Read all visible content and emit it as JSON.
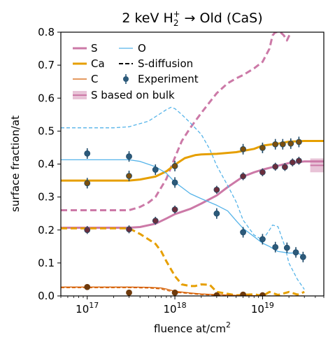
{
  "chart_data": {
    "type": "line",
    "title": {
      "prefix": "2 keV H",
      "sub": "2",
      "sup": "+",
      "suffix": " → Old (CaS)"
    },
    "xlabel": {
      "prefix": "fluence at/cm",
      "sup": "2"
    },
    "ylabel": "surface fraction/at",
    "x_scale": "log",
    "xlim": [
      5e+16,
      5e+19
    ],
    "ylim": [
      0.0,
      0.8
    ],
    "x_ticks": [
      {
        "value": 1e+17,
        "base": "10",
        "exp": "17"
      },
      {
        "value": 1e+18,
        "base": "10",
        "exp": "18"
      },
      {
        "value": 1e+19,
        "base": "10",
        "exp": "19"
      }
    ],
    "y_ticks": [
      0.0,
      0.1,
      0.2,
      0.3,
      0.4,
      0.5,
      0.6,
      0.7,
      0.8
    ],
    "y_tick_labels": [
      "0.0",
      "0.1",
      "0.2",
      "0.3",
      "0.4",
      "0.5",
      "0.6",
      "0.7",
      "0.8"
    ],
    "grid": false,
    "legend": {
      "placement": "top-left",
      "entries": [
        {
          "label": "S",
          "kind": "line",
          "color": "#cc79a7",
          "width": 3
        },
        {
          "label": "O",
          "kind": "line",
          "color": "#56b4e9",
          "width": 1.3
        },
        {
          "label": "Ca",
          "kind": "line",
          "color": "#e69f00",
          "width": 3
        },
        {
          "label": "S-diffusion",
          "kind": "dashed",
          "color": "#000000",
          "width": 2
        },
        {
          "label": "C",
          "kind": "line",
          "color": "#d55e00",
          "width": 1.3
        },
        {
          "label": "Experiment",
          "kind": "marker",
          "color": "#2c5a7a",
          "width": 1.5
        },
        {
          "label": "S based on bulk",
          "kind": "band",
          "color": "#cc79a7",
          "width": 2
        }
      ]
    },
    "series": [
      {
        "name": "S",
        "color": "#cc79a7",
        "width": 3,
        "dash": "none",
        "x": [
          5e+16,
          3e+17,
          4e+17,
          6e+17,
          8e+17,
          1e+18,
          1.5e+18,
          2e+18,
          3e+18,
          4e+18,
          6e+18,
          8e+18,
          1e+19,
          1.5e+19,
          2e+19,
          2.5e+19,
          3e+19,
          5e+19
        ],
        "y": [
          0.207,
          0.207,
          0.209,
          0.219,
          0.235,
          0.248,
          0.264,
          0.28,
          0.305,
          0.33,
          0.362,
          0.375,
          0.383,
          0.395,
          0.403,
          0.405,
          0.408,
          0.408
        ]
      },
      {
        "name": "S-diffusion (S)",
        "color": "#cc79a7",
        "width": 3,
        "dash": "9,5",
        "x": [
          5e+16,
          3e+17,
          4e+17,
          5e+17,
          6e+17,
          8e+17,
          1e+18,
          1.2e+18,
          1.5e+18,
          2e+18,
          2.5e+18,
          3e+18,
          4e+18,
          5e+18,
          6e+18,
          8e+18,
          1e+19,
          1.2e+19,
          1.3e+19,
          1.4e+19,
          1.6e+19,
          1.75e+19,
          1.9e+19,
          2.1e+19
        ],
        "y": [
          0.26,
          0.26,
          0.27,
          0.283,
          0.3,
          0.355,
          0.42,
          0.47,
          0.51,
          0.555,
          0.588,
          0.615,
          0.645,
          0.66,
          0.67,
          0.69,
          0.71,
          0.75,
          0.79,
          0.8,
          0.8,
          0.79,
          0.775,
          0.8
        ]
      },
      {
        "name": "Ca",
        "color": "#e69f00",
        "width": 3,
        "dash": "none",
        "x": [
          5e+16,
          3e+17,
          4e+17,
          6e+17,
          8e+17,
          1e+18,
          1.3e+18,
          1.7e+18,
          2e+18,
          3e+18,
          5e+18,
          8e+18,
          1e+19,
          1.5e+19,
          2e+19,
          3e+19,
          5e+19
        ],
        "y": [
          0.35,
          0.35,
          0.353,
          0.362,
          0.378,
          0.398,
          0.418,
          0.427,
          0.429,
          0.431,
          0.436,
          0.446,
          0.456,
          0.462,
          0.468,
          0.47,
          0.47
        ]
      },
      {
        "name": "S-diffusion (Ca)",
        "color": "#e69f00",
        "width": 3,
        "dash": "9,5",
        "x": [
          5e+16,
          3e+17,
          4e+17,
          6e+17,
          7e+17,
          8e+17,
          1e+18,
          1.2e+18,
          1.5e+18,
          1.7e+18,
          2e+18,
          2.5e+18,
          3e+18,
          5e+18,
          8e+18,
          1e+19,
          1.2e+19,
          1.5e+19,
          2e+19,
          2.5e+19,
          3e+19
        ],
        "y": [
          0.205,
          0.205,
          0.188,
          0.158,
          0.135,
          0.105,
          0.06,
          0.035,
          0.03,
          0.03,
          0.035,
          0.034,
          0.012,
          0.002,
          0.005,
          0.0,
          0.012,
          0.003,
          0.012,
          0.004,
          0.012
        ]
      },
      {
        "name": "O",
        "color": "#56b4e9",
        "width": 1.3,
        "dash": "none",
        "x": [
          5e+16,
          3e+17,
          4e+17,
          6e+17,
          8e+17,
          1e+18,
          1.5e+18,
          2e+18,
          3e+18,
          4e+18,
          5e+18,
          6e+18,
          8e+18,
          1e+19,
          1.2e+19,
          1.5e+19,
          2e+19,
          2.5e+19,
          3e+19
        ],
        "y": [
          0.413,
          0.413,
          0.408,
          0.392,
          0.372,
          0.345,
          0.31,
          0.295,
          0.275,
          0.258,
          0.228,
          0.205,
          0.18,
          0.16,
          0.15,
          0.135,
          0.13,
          0.13,
          0.12
        ]
      },
      {
        "name": "S-diffusion (O)",
        "color": "#56b4e9",
        "width": 1.3,
        "dash": "5,3",
        "x": [
          5e+16,
          2e+17,
          3e+17,
          5e+17,
          7e+17,
          8e+17,
          9e+17,
          1e+18,
          1.2e+18,
          1.5e+18,
          2e+18,
          2.5e+18,
          3e+18,
          4e+18,
          5e+18,
          6e+18,
          8e+18,
          1e+19,
          1.2e+19,
          1.3e+19,
          1.5e+19,
          1.8e+19,
          2e+19,
          2.5e+19,
          3e+19
        ],
        "y": [
          0.51,
          0.51,
          0.513,
          0.53,
          0.555,
          0.565,
          0.572,
          0.568,
          0.55,
          0.525,
          0.49,
          0.445,
          0.395,
          0.335,
          0.285,
          0.23,
          0.185,
          0.17,
          0.2,
          0.215,
          0.21,
          0.15,
          0.1,
          0.05,
          0.02
        ]
      },
      {
        "name": "C",
        "color": "#d55e00",
        "width": 1.3,
        "dash": "none",
        "x": [
          5e+16,
          3e+17,
          5e+17,
          7e+17,
          8e+17,
          1e+18,
          1.5e+18,
          2e+18,
          3e+18,
          5e+18,
          8e+18,
          1e+19,
          2e+19,
          3e+19
        ],
        "y": [
          0.027,
          0.027,
          0.026,
          0.024,
          0.021,
          0.014,
          0.009,
          0.006,
          0.004,
          0.002,
          0.001,
          0.0,
          0.0,
          0.0
        ]
      },
      {
        "name": "S-diffusion (C)",
        "color": "#d55e00",
        "width": 1.3,
        "dash": "5,3",
        "x": [
          5e+16,
          3e+17,
          5e+17,
          7e+17,
          8e+17,
          1e+18,
          1.5e+18,
          2e+18,
          3e+18,
          5e+18,
          8e+18,
          1e+19,
          2e+19,
          3e+19
        ],
        "y": [
          0.025,
          0.025,
          0.024,
          0.021,
          0.017,
          0.011,
          0.007,
          0.004,
          0.002,
          0.001,
          0.0,
          0.0,
          0.0,
          0.0
        ]
      }
    ],
    "experiment": [
      {
        "name": "Ca",
        "face": "#7a4f0e",
        "edge": "#1e4a6a",
        "points": [
          [
            1e+17,
            0.342
          ],
          [
            3e+17,
            0.364
          ],
          [
            1e+18,
            0.394
          ],
          [
            6e+18,
            0.445
          ],
          [
            1e+19,
            0.449
          ],
          [
            1.4e+19,
            0.46
          ],
          [
            1.7e+19,
            0.46
          ],
          [
            2.1e+19,
            0.462
          ],
          [
            2.6e+19,
            0.467
          ]
        ],
        "yerr": 0.016
      },
      {
        "name": "O",
        "face": "#2c5a7a",
        "edge": "#1e4a6a",
        "points": [
          [
            1e+17,
            0.432
          ],
          [
            3e+17,
            0.423
          ],
          [
            6e+17,
            0.383
          ],
          [
            1e+18,
            0.344
          ],
          [
            3e+18,
            0.25
          ],
          [
            6e+18,
            0.193
          ],
          [
            1e+19,
            0.172
          ],
          [
            1.4e+19,
            0.148
          ],
          [
            1.9e+19,
            0.146
          ],
          [
            2.4e+19,
            0.132
          ],
          [
            2.9e+19,
            0.118
          ]
        ],
        "yerr": 0.016
      },
      {
        "name": "S",
        "face": "#6a2e3c",
        "edge": "#2c4a66",
        "points": [
          [
            1e+17,
            0.2
          ],
          [
            3e+17,
            0.202
          ],
          [
            6e+17,
            0.228
          ],
          [
            1e+18,
            0.262
          ],
          [
            3e+18,
            0.322
          ],
          [
            6e+18,
            0.363
          ],
          [
            1e+19,
            0.375
          ],
          [
            1.4e+19,
            0.392
          ],
          [
            1.8e+19,
            0.391
          ],
          [
            2.2e+19,
            0.405
          ],
          [
            2.6e+19,
            0.41
          ]
        ],
        "yerr": 0.012
      },
      {
        "name": "C",
        "face": "#6e3a0c",
        "edge": "#6e3a0c",
        "points": [
          [
            1e+17,
            0.027
          ],
          [
            3e+17,
            0.01
          ],
          [
            1e+18,
            0.01
          ],
          [
            3e+18,
            0.002
          ],
          [
            6e+18,
            0.004
          ],
          [
            1e+19,
            0.002
          ]
        ],
        "yerr": 0.0
      }
    ],
    "s_bulk": {
      "x_range": [
        3.5e+19,
        5e+19
      ],
      "y": 0.396,
      "y_range": [
        0.375,
        0.417
      ],
      "color": "#cc79a7"
    }
  }
}
